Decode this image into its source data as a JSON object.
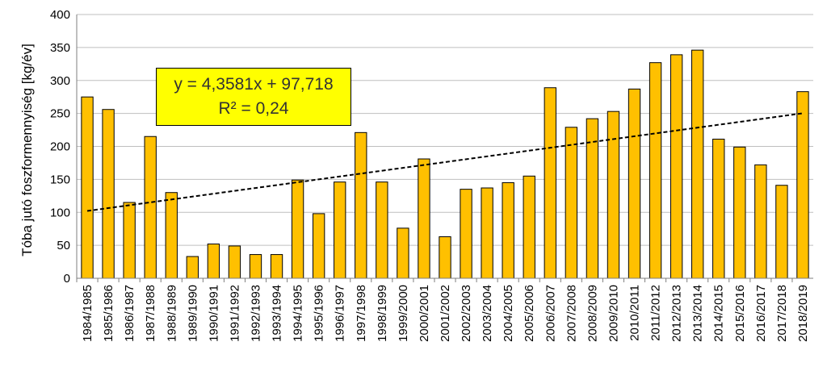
{
  "chart_data": {
    "type": "bar",
    "ylabel": "Tóba jutó foszformennyiség [kg/év]",
    "xlabel": "",
    "ylim": [
      0,
      400
    ],
    "yticks": [
      0,
      50,
      100,
      150,
      200,
      250,
      300,
      350,
      400
    ],
    "grid": true,
    "bar_color": "#FFC000",
    "categories": [
      "1984/1985",
      "1985/1986",
      "1986/1987",
      "1987/1988",
      "1988/1989",
      "1989/1990",
      "1990/1991",
      "1991/1992",
      "1992/1993",
      "1993/1994",
      "1994/1995",
      "1995/1996",
      "1996/1997",
      "1997/1998",
      "1998/1999",
      "1999/2000",
      "2000/2001",
      "2001/2002",
      "2002/2003",
      "2003/2004",
      "2004/2005",
      "2005/2006",
      "2006/2007",
      "2007/2008",
      "2008/2009",
      "2009/2010",
      "2010/2011",
      "2011/2012",
      "2012/2013",
      "2013/2014",
      "2014/2015",
      "2015/2016",
      "2016/2017",
      "2017/2018",
      "2018/2019"
    ],
    "values": [
      275,
      256,
      115,
      215,
      130,
      33,
      52,
      49,
      36,
      36,
      149,
      98,
      146,
      221,
      146,
      76,
      181,
      63,
      135,
      137,
      145,
      155,
      289,
      229,
      242,
      253,
      287,
      327,
      339,
      346,
      211,
      199,
      172,
      141,
      283
    ],
    "trendline": {
      "type": "linear",
      "slope": 4.3581,
      "intercept": 97.718,
      "equation": "y = 4,3581x + 97,718",
      "r2": "R² = 0,24",
      "box_color": "#FFFF00",
      "line_color": "#000000",
      "dashed": true
    }
  }
}
